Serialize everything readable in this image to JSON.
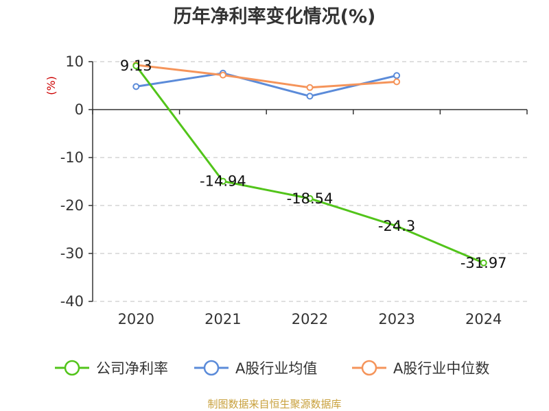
{
  "chart_data": {
    "type": "line",
    "title": "历年净利率变化情况(%)",
    "unit_label": "(%)",
    "categories": [
      "2020",
      "2021",
      "2022",
      "2023",
      "2024"
    ],
    "ylim": [
      -40,
      10
    ],
    "yticks": [
      10,
      0,
      -10,
      -20,
      -30,
      -40
    ],
    "grid": true,
    "legend_position": "bottom",
    "series": [
      {
        "name": "公司净利率",
        "color": "#52c41a",
        "values": [
          9.13,
          -14.94,
          -18.54,
          -24.3,
          -31.97
        ],
        "labels": [
          "9.13",
          "-14.94",
          "-18.54",
          "-24.3",
          "-31.97"
        ]
      },
      {
        "name": "A股行业均值",
        "color": "#5b8bd9",
        "values": [
          4.8,
          7.6,
          2.8,
          7.1,
          null
        ]
      },
      {
        "name": "A股行业中位数",
        "color": "#f5945a",
        "values": [
          9.3,
          7.2,
          4.6,
          5.8,
          null
        ]
      }
    ]
  },
  "source": "制图数据来自恒生聚源数据库"
}
